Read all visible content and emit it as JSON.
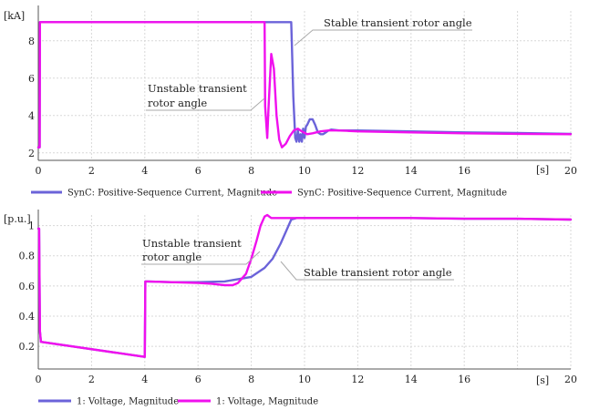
{
  "colors": {
    "series_blue": "#6b63d9",
    "series_magenta": "#f010ee",
    "grid": "#d8d8d8",
    "axis": "#555555"
  },
  "chart_data": [
    {
      "type": "line",
      "title": "",
      "xlabel": "",
      "ylabel": "",
      "x_unit": "[s]",
      "y_unit": "[kA]",
      "xlim": [
        0,
        20
      ],
      "ylim": [
        1.6,
        9.6
      ],
      "x_ticks": [
        0,
        2,
        4,
        6,
        8,
        10,
        12,
        14,
        16,
        18,
        20
      ],
      "y_ticks": [
        2,
        4,
        6,
        8
      ],
      "grid": true,
      "legend": "bottom",
      "series": [
        {
          "name": "SynC: Positive-Sequence Current, Magnitude",
          "color": "#6b63d9",
          "x": [
            0,
            0.05,
            0.06,
            9.5,
            9.52,
            9.58,
            9.65,
            9.7,
            9.75,
            9.8,
            9.85,
            9.9,
            9.95,
            10.0,
            10.05,
            10.1,
            10.2,
            10.3,
            10.4,
            10.5,
            10.6,
            10.7,
            10.8,
            10.9,
            11.0,
            11.3,
            11.6,
            12,
            14,
            16,
            18,
            20
          ],
          "values": [
            2.3,
            2.3,
            9.0,
            9.0,
            8.0,
            5.0,
            2.8,
            2.6,
            3.2,
            2.6,
            3.0,
            2.6,
            3.3,
            2.8,
            3.4,
            3.5,
            3.8,
            3.8,
            3.5,
            3.1,
            3.0,
            3.0,
            3.1,
            3.2,
            3.25,
            3.2,
            3.2,
            3.2,
            3.15,
            3.1,
            3.07,
            3.02
          ]
        },
        {
          "name": "SynC: Positive-Sequence Current, Magnitude",
          "color": "#f010ee",
          "x": [
            0,
            0.05,
            0.06,
            8.5,
            8.52,
            8.6,
            8.65,
            8.75,
            8.85,
            8.95,
            9.05,
            9.15,
            9.3,
            9.45,
            9.6,
            9.75,
            9.9,
            10.1,
            10.3,
            10.6,
            10.9,
            11.2,
            11.6,
            12,
            14,
            16,
            18,
            20
          ],
          "values": [
            2.3,
            2.3,
            9.0,
            9.0,
            4.5,
            2.8,
            4.5,
            7.3,
            6.5,
            4.0,
            2.7,
            2.3,
            2.5,
            2.9,
            3.2,
            3.3,
            3.15,
            3.0,
            3.05,
            3.15,
            3.2,
            3.2,
            3.18,
            3.15,
            3.1,
            3.05,
            3.02,
            3.0
          ]
        }
      ],
      "annotations": [
        {
          "text": "Stable transient rotor angle"
        },
        {
          "text": "Unstable transient rotor angle"
        }
      ]
    },
    {
      "type": "line",
      "title": "",
      "xlabel": "",
      "ylabel": "",
      "x_unit": "[s]",
      "y_unit": "[p.u.]",
      "xlim": [
        0,
        20
      ],
      "ylim": [
        0.05,
        1.07
      ],
      "x_ticks": [
        0,
        2,
        4,
        6,
        8,
        10,
        12,
        14,
        16,
        18,
        20
      ],
      "y_ticks": [
        0.2,
        0.4,
        0.6,
        0.8,
        1
      ],
      "grid": true,
      "legend": "bottom",
      "series": [
        {
          "name": "1: Voltage, Magnitude",
          "color": "#6b63d9",
          "x": [
            0,
            0.03,
            0.06,
            0.1,
            4.0,
            4.02,
            4.1,
            5,
            6,
            7,
            7.5,
            8,
            8.5,
            8.8,
            9.1,
            9.3,
            9.5,
            9.7,
            10,
            12,
            14,
            16,
            18,
            20
          ],
          "values": [
            0.98,
            0.98,
            0.3,
            0.23,
            0.13,
            0.63,
            0.63,
            0.625,
            0.625,
            0.63,
            0.645,
            0.66,
            0.72,
            0.78,
            0.88,
            0.96,
            1.04,
            1.05,
            1.05,
            1.05,
            1.05,
            1.045,
            1.045,
            1.04
          ]
        },
        {
          "name": "1: Voltage, Magnitude",
          "color": "#f010ee",
          "x": [
            0,
            0.03,
            0.06,
            0.1,
            4.0,
            4.02,
            4.1,
            5,
            6,
            6.5,
            7,
            7.3,
            7.5,
            7.8,
            8.0,
            8.2,
            8.35,
            8.5,
            8.6,
            8.75,
            9,
            10,
            12,
            14,
            16,
            18,
            20
          ],
          "values": [
            0.98,
            0.98,
            0.3,
            0.23,
            0.13,
            0.63,
            0.63,
            0.625,
            0.62,
            0.615,
            0.605,
            0.605,
            0.62,
            0.68,
            0.78,
            0.9,
            1.0,
            1.06,
            1.07,
            1.05,
            1.05,
            1.05,
            1.05,
            1.05,
            1.045,
            1.045,
            1.04
          ]
        }
      ],
      "annotations": [
        {
          "text": "Unstable transient rotor angle"
        },
        {
          "text": "Stable transient rotor angle"
        }
      ]
    }
  ],
  "top_annotations": {
    "stable": "Stable transient rotor angle",
    "unstable_line1": "Unstable transient",
    "unstable_line2": "rotor angle"
  },
  "bottom_annotations": {
    "unstable_line1": "Unstable transient",
    "unstable_line2": "rotor angle",
    "stable": "Stable transient rotor angle"
  },
  "legend_top": [
    {
      "label": "SynC: Positive-Sequence Current, Magnitude",
      "color": "#6b63d9"
    },
    {
      "label": "SynC: Positive-Sequence Current, Magnitude",
      "color": "#f010ee"
    }
  ],
  "legend_bottom": [
    {
      "label": "1: Voltage, Magnitude",
      "color": "#6b63d9"
    },
    {
      "label": "1: Voltage, Magnitude",
      "color": "#f010ee"
    }
  ]
}
